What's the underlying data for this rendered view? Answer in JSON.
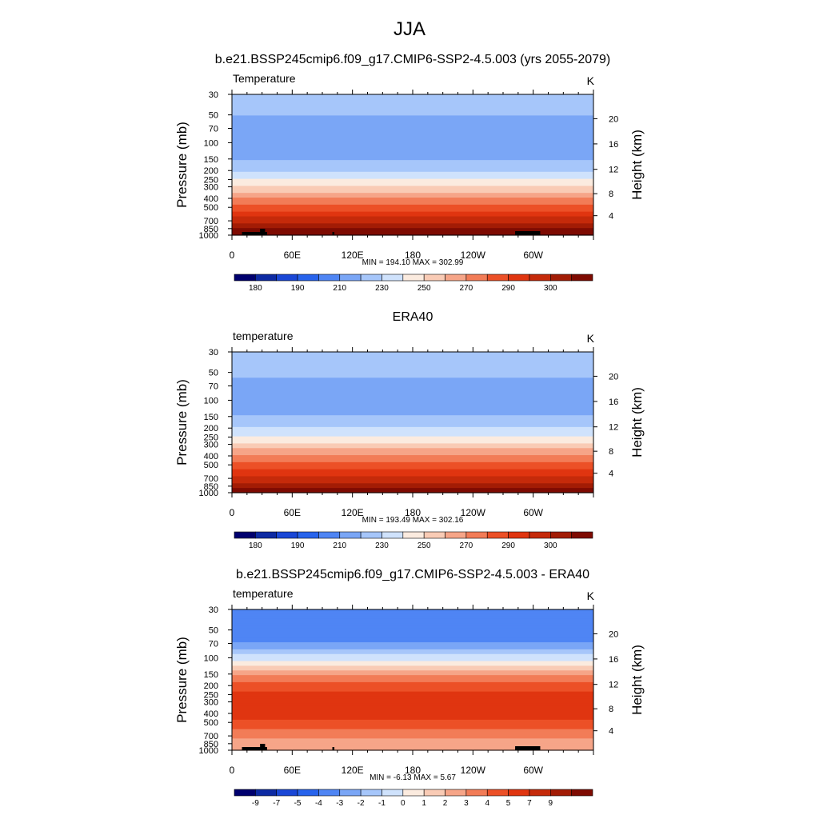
{
  "figure": {
    "title": "JJA"
  },
  "chart_data": [
    {
      "type": "heatmap",
      "title": "b.e21.BSSP245cmip6.f09_g17.CMIP6-SSP2-4.5.003 (yrs 2055-2079)",
      "variable": "Temperature",
      "units": "K",
      "ylabel": "Pressure (mb)",
      "ylabel_right": "Height (km)",
      "x_ticks": [
        "0",
        "60E",
        "120E",
        "180",
        "120W",
        "60W"
      ],
      "y_ticks": [
        "30",
        "50",
        "70",
        "100",
        "150",
        "200",
        "250",
        "300",
        "400",
        "500",
        "700",
        "850",
        "1000"
      ],
      "height_ticks": [
        "4",
        "8",
        "12",
        "16",
        "20"
      ],
      "stats": "MIN = 194.10  MAX = 302.99",
      "colorbar_labels": [
        "180",
        "190",
        "210",
        "230",
        "250",
        "270",
        "290",
        "300"
      ],
      "colors": [
        "#00006e",
        "#0d2aa3",
        "#1a47d6",
        "#2763ec",
        "#4f85f4",
        "#7aa6f6",
        "#a6c6fa",
        "#cfe2fc",
        "#fbebdf",
        "#f9cbb5",
        "#f6a588",
        "#f27c57",
        "#ec5027",
        "#e03510",
        "#c52a0a",
        "#a21c05",
        "#7e0b02"
      ],
      "profile": [
        {
          "p": 30,
          "v": 224
        },
        {
          "p": 50,
          "v": 218
        },
        {
          "p": 70,
          "v": 214
        },
        {
          "p": 100,
          "v": 211
        },
        {
          "p": 150,
          "v": 217
        },
        {
          "p": 200,
          "v": 224
        },
        {
          "p": 250,
          "v": 233
        },
        {
          "p": 300,
          "v": 241
        },
        {
          "p": 400,
          "v": 255
        },
        {
          "p": 500,
          "v": 266
        },
        {
          "p": 700,
          "v": 282
        },
        {
          "p": 850,
          "v": 292
        },
        {
          "p": 1000,
          "v": 300
        }
      ]
    },
    {
      "type": "heatmap",
      "title": "ERA40",
      "variable": "temperature",
      "units": "K",
      "ylabel": "Pressure (mb)",
      "ylabel_right": "Height (km)",
      "x_ticks": [
        "0",
        "60E",
        "120E",
        "180",
        "120W",
        "60W"
      ],
      "y_ticks": [
        "30",
        "50",
        "70",
        "100",
        "150",
        "200",
        "250",
        "300",
        "400",
        "500",
        "700",
        "850",
        "1000"
      ],
      "height_ticks": [
        "4",
        "8",
        "12",
        "16",
        "20"
      ],
      "stats": "MIN = 193.49  MAX = 302.16",
      "colorbar_labels": [
        "180",
        "190",
        "210",
        "230",
        "250",
        "270",
        "290",
        "300"
      ],
      "colors": [
        "#00006e",
        "#0d2aa3",
        "#1a47d6",
        "#2763ec",
        "#4f85f4",
        "#7aa6f6",
        "#a6c6fa",
        "#cfe2fc",
        "#fbebdf",
        "#f9cbb5",
        "#f6a588",
        "#f27c57",
        "#ec5027",
        "#e03510",
        "#c52a0a",
        "#a21c05",
        "#7e0b02"
      ],
      "profile": [
        {
          "p": 30,
          "v": 225
        },
        {
          "p": 50,
          "v": 219
        },
        {
          "p": 70,
          "v": 215
        },
        {
          "p": 100,
          "v": 212
        },
        {
          "p": 150,
          "v": 218
        },
        {
          "p": 200,
          "v": 225
        },
        {
          "p": 250,
          "v": 234
        },
        {
          "p": 300,
          "v": 242
        },
        {
          "p": 400,
          "v": 255
        },
        {
          "p": 500,
          "v": 265
        },
        {
          "p": 700,
          "v": 280
        },
        {
          "p": 850,
          "v": 290
        },
        {
          "p": 1000,
          "v": 298
        }
      ]
    },
    {
      "type": "heatmap",
      "title": "b.e21.BSSP245cmip6.f09_g17.CMIP6-SSP2-4.5.003 - ERA40",
      "variable": "temperature",
      "units": "K",
      "ylabel": "Pressure (mb)",
      "ylabel_right": "Height (km)",
      "x_ticks": [
        "0",
        "60E",
        "120E",
        "180",
        "120W",
        "60W"
      ],
      "y_ticks": [
        "30",
        "50",
        "70",
        "100",
        "150",
        "200",
        "250",
        "300",
        "400",
        "500",
        "700",
        "850",
        "1000"
      ],
      "height_ticks": [
        "4",
        "8",
        "12",
        "16",
        "20"
      ],
      "stats": "MIN = -6.13  MAX =  5.67",
      "colorbar_labels": [
        "-9",
        "-7",
        "-5",
        "-4",
        "-3",
        "-2",
        "-1",
        "0",
        "1",
        "2",
        "3",
        "4",
        "5",
        "7",
        "9"
      ],
      "colors": [
        "#00006e",
        "#0d2aa3",
        "#1a47d6",
        "#2763ec",
        "#4f85f4",
        "#7aa6f6",
        "#a6c6fa",
        "#cfe2fc",
        "#fbebdf",
        "#f9cbb5",
        "#f6a588",
        "#f27c57",
        "#ec5027",
        "#e03510",
        "#c52a0a",
        "#a21c05",
        "#7e0b02"
      ],
      "profile": [
        {
          "p": 30,
          "v": -4.2
        },
        {
          "p": 50,
          "v": -4.5
        },
        {
          "p": 70,
          "v": -4.0
        },
        {
          "p": 100,
          "v": -1.5
        },
        {
          "p": 150,
          "v": 2.0
        },
        {
          "p": 200,
          "v": 3.5
        },
        {
          "p": 250,
          "v": 4.2
        },
        {
          "p": 300,
          "v": 4.5
        },
        {
          "p": 400,
          "v": 4.6
        },
        {
          "p": 500,
          "v": 3.8
        },
        {
          "p": 700,
          "v": 2.4
        },
        {
          "p": 850,
          "v": 1.2
        },
        {
          "p": 1000,
          "v": 1.0
        }
      ]
    }
  ]
}
